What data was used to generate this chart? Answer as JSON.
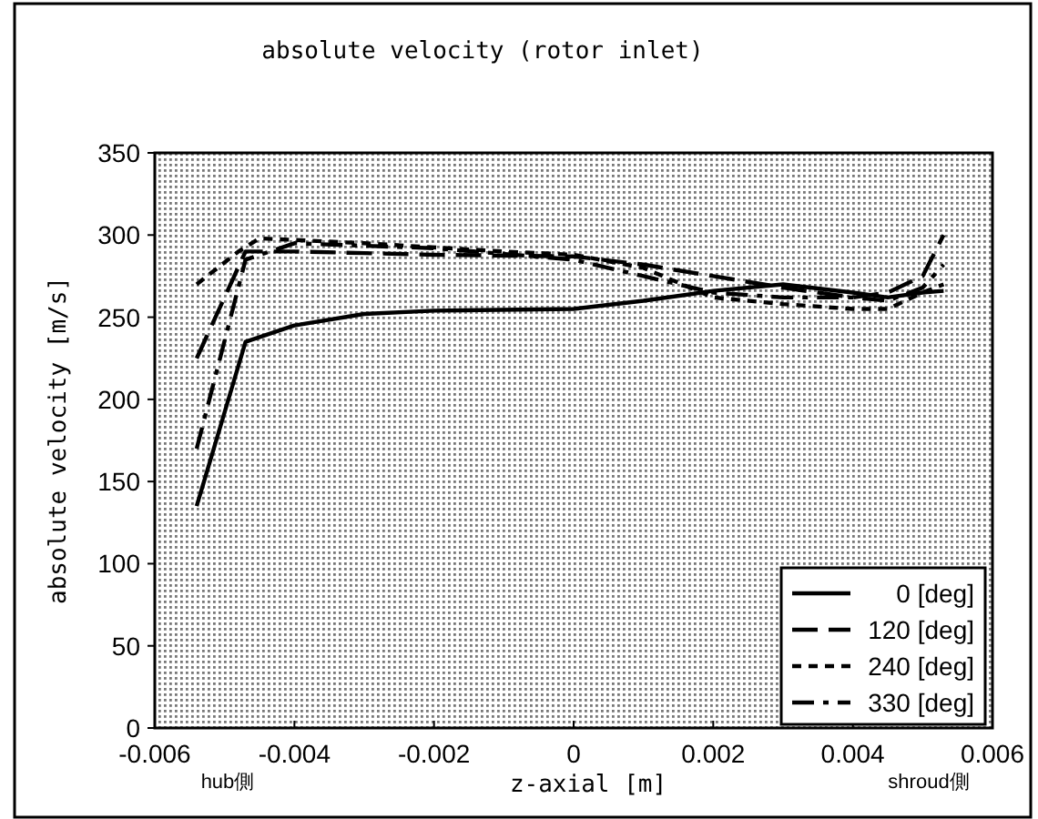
{
  "chart_data": {
    "type": "line",
    "title": "absolute velocity (rotor inlet)",
    "xlabel": "z-axial [m]",
    "ylabel": "absolute velocity [m/s]",
    "annotations": [
      "hub側",
      "shroud側"
    ],
    "xlim": [
      -0.006,
      0.006
    ],
    "xticks": [
      {
        "value": -0.006,
        "label": "-0.006"
      },
      {
        "value": -0.004,
        "label": "-0.004"
      },
      {
        "value": -0.002,
        "label": "-0.002"
      },
      0,
      {
        "value": 0.002,
        "label": "0.002"
      },
      {
        "value": 0.004,
        "label": "0.004"
      },
      {
        "value": 0.006,
        "label": "0.006"
      }
    ],
    "ylim": [
      0,
      350
    ],
    "yticks": [
      0,
      50,
      100,
      150,
      200,
      250,
      300,
      350
    ],
    "grid": false,
    "legend": "bottom right",
    "marker": "none",
    "series": [
      {
        "name": "0 [deg]",
        "color": "#000000",
        "line_style": "solid",
        "x": [
          -0.0054,
          -0.0047,
          -0.004,
          -0.003,
          -0.002,
          0,
          0.001,
          0.002,
          0.003,
          0.004,
          0.0045,
          0.005,
          0.0053
        ],
        "values": [
          135,
          235,
          245,
          252,
          254,
          255,
          260,
          266,
          270,
          265,
          262,
          265,
          266
        ]
      },
      {
        "name": "120 [deg]",
        "color": "#000000",
        "line_style": "dashed",
        "x": [
          -0.0054,
          -0.0047,
          -0.004,
          -0.003,
          -0.002,
          0,
          0.001,
          0.002,
          0.003,
          0.004,
          0.0045,
          0.005,
          0.0053
        ],
        "values": [
          225,
          290,
          290,
          289,
          288,
          287,
          282,
          275,
          268,
          262,
          265,
          275,
          300
        ]
      },
      {
        "name": "240 [deg]",
        "color": "#000000",
        "line_style": "dotted",
        "x": [
          -0.0054,
          -0.0048,
          -0.0045,
          -0.003,
          -0.001,
          0,
          0.001,
          0.002,
          0.003,
          0.004,
          0.0045,
          0.005,
          0.0053
        ],
        "values": [
          270,
          290,
          298,
          295,
          290,
          288,
          280,
          262,
          258,
          255,
          255,
          265,
          270
        ]
      },
      {
        "name": "330 [deg]",
        "color": "#000000",
        "line_style": "dashed",
        "x": [
          -0.0054,
          -0.0047,
          -0.004,
          -0.002,
          0,
          0.001,
          0.002,
          0.003,
          0.004,
          0.0045,
          0.005,
          0.0053
        ],
        "values": [
          170,
          285,
          295,
          292,
          285,
          275,
          265,
          262,
          262,
          260,
          268,
          282
        ]
      }
    ]
  }
}
